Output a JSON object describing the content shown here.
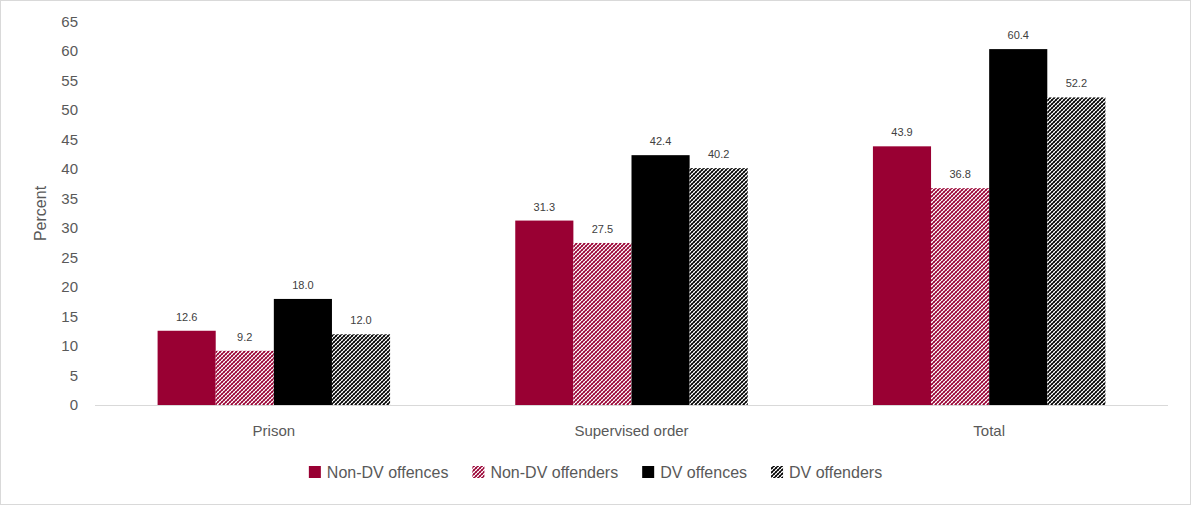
{
  "chart_data": {
    "type": "bar",
    "ylabel": "Percent",
    "categories": [
      "Prison",
      "Supervised order",
      "Total"
    ],
    "series": [
      {
        "name": "Non-DV offences",
        "color": "#990033",
        "values": [
          12.6,
          31.3,
          43.9
        ],
        "value_labels": [
          "12.6",
          "31.3",
          "43.9"
        ]
      },
      {
        "name": "Non-DV offenders",
        "color": "#990033",
        "values": [
          9.2,
          27.5,
          36.8
        ],
        "value_labels": [
          "9.2",
          "27.5",
          "36.8"
        ]
      },
      {
        "name": "DV offences",
        "color": "#000000",
        "values": [
          18.0,
          42.4,
          60.4
        ],
        "value_labels": [
          "18.0",
          "42.4",
          "60.4"
        ]
      },
      {
        "name": "DV offenders",
        "color": "#000000",
        "values": [
          12.0,
          40.2,
          52.2
        ],
        "value_labels": [
          "12.0",
          "40.2",
          "52.2"
        ]
      }
    ],
    "ylim": [
      0,
      65
    ],
    "yticks": [
      0,
      5,
      10,
      15,
      20,
      25,
      30,
      35,
      40,
      45,
      50,
      55,
      60,
      65
    ],
    "grid": false,
    "legend": "bottom",
    "data_labels": true
  }
}
